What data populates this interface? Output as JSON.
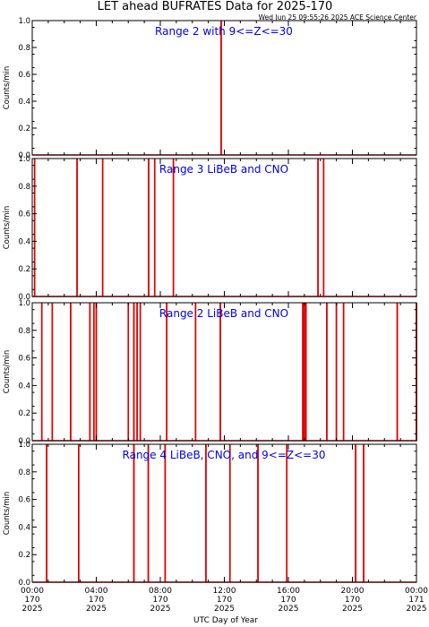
{
  "header": {
    "title": "LET ahead BUFRATES Data for 2025-170",
    "timestamp": "Wed Jun 25 09:55:26 2025 ACE Science Center"
  },
  "colors": {
    "trace": "#dd0000",
    "panel_label": "#0000ee",
    "axes": "#000000",
    "background": "#ffffff"
  },
  "chart_data": [
    {
      "type": "line",
      "title": "Range 2 with 9<=Z<=30",
      "ylabel": "Counts/min",
      "xlabel": "",
      "ylim": [
        0,
        1
      ],
      "xlim_hours": [
        0,
        24
      ],
      "yticks": [
        "0.0",
        "0.2",
        "0.4",
        "0.6",
        "0.8",
        "1.0"
      ],
      "spikes_hours": [
        11.8
      ]
    },
    {
      "type": "line",
      "title": "Range 3 LiBeB and CNO",
      "ylabel": "Counts/min",
      "xlabel": "",
      "ylim": [
        0,
        1
      ],
      "xlim_hours": [
        0,
        24
      ],
      "yticks": [
        "0.0",
        "0.2",
        "0.4",
        "0.6",
        "0.8",
        "1.0"
      ],
      "spikes_hours": [
        0.15,
        2.8,
        4.4,
        7.27,
        7.65,
        8.82,
        17.85,
        18.2
      ]
    },
    {
      "type": "line",
      "title": "Range 2 LiBeB and CNO",
      "ylabel": "Counts/min",
      "xlabel": "",
      "ylim": [
        0,
        1
      ],
      "xlim_hours": [
        0,
        24
      ],
      "yticks": [
        "0.0",
        "0.2",
        "0.4",
        "0.6",
        "0.8",
        "1.0"
      ],
      "spikes_hours": [
        0.6,
        1.25,
        2.4,
        3.6,
        3.85,
        4.0,
        6.0,
        6.35,
        6.55,
        6.75,
        8.4,
        10.2,
        11.75,
        16.9,
        17.0,
        17.1,
        18.4,
        19.0,
        19.45,
        22.8,
        24.0
      ]
    },
    {
      "type": "line",
      "title": "Range 4 LiBeB, CNO, and 9<=Z<=30",
      "ylabel": "Counts/min",
      "xlabel": "UTC Day of Year",
      "ylim": [
        0,
        1
      ],
      "xlim_hours": [
        0,
        24
      ],
      "yticks": [
        "0.0",
        "0.2",
        "0.4",
        "0.6",
        "0.8",
        "1.0"
      ],
      "spikes_hours": [
        0.9,
        2.9,
        6.35,
        7.25,
        8.3,
        10.85,
        12.35,
        14.1,
        15.9,
        20.2,
        20.7
      ]
    }
  ],
  "x_axis": {
    "label": "UTC Day of Year",
    "ticks": [
      {
        "hour": 0,
        "time": "00:00",
        "day": "170",
        "year": "2025"
      },
      {
        "hour": 4,
        "time": "04:00",
        "day": "170",
        "year": "2025"
      },
      {
        "hour": 8,
        "time": "08:00",
        "day": "170",
        "year": "2025"
      },
      {
        "hour": 12,
        "time": "12:00",
        "day": "170",
        "year": "2025"
      },
      {
        "hour": 16,
        "time": "16:00",
        "day": "170",
        "year": "2025"
      },
      {
        "hour": 20,
        "time": "20:00",
        "day": "170",
        "year": "2025"
      },
      {
        "hour": 24,
        "time": "00:00",
        "day": "171",
        "year": "2025"
      }
    ]
  }
}
